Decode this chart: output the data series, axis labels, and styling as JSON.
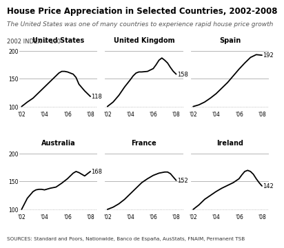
{
  "title": "House Price Appreciation in Selected Countries, 2002-2008",
  "subtitle": "The United States was one of many countries to experience rapid house price growth",
  "index_label": "2002 INDEX = 100",
  "sources": "SOURCES: Standard and Poors, Nationwide, Banco de España, AusStats, FNAIM, Permanent TSB",
  "background_color": "#ffffff",
  "line_color": "#000000",
  "grid_color": "#aaaaaa",
  "title_color": "#000000",
  "subtitle_color": "#555555",
  "x_ticks": [
    2002,
    2004,
    2006,
    2008
  ],
  "x_tick_labels": [
    "'02",
    "'04",
    "'06",
    "'08"
  ],
  "ylim": [
    93,
    212
  ],
  "yticks": [
    100,
    150,
    200
  ],
  "panels": [
    {
      "title": "United States",
      "end_label": "118",
      "data_x": [
        2002,
        2002.5,
        2003,
        2003.5,
        2004,
        2004.5,
        2005,
        2005.25,
        2005.5,
        2005.75,
        2006,
        2006.25,
        2006.5,
        2006.75,
        2007,
        2007.5,
        2008
      ],
      "data_y": [
        100,
        108,
        115,
        125,
        135,
        145,
        155,
        160,
        163,
        163,
        162,
        160,
        158,
        152,
        140,
        128,
        118
      ]
    },
    {
      "title": "United Kingdom",
      "end_label": "158",
      "data_x": [
        2002,
        2002.5,
        2003,
        2003.5,
        2004,
        2004.25,
        2004.5,
        2004.75,
        2005,
        2005.5,
        2006,
        2006.25,
        2006.5,
        2006.75,
        2007,
        2007.25,
        2007.5,
        2007.75,
        2008
      ],
      "data_y": [
        100,
        108,
        120,
        135,
        148,
        155,
        160,
        162,
        162,
        163,
        168,
        175,
        183,
        187,
        183,
        178,
        170,
        163,
        158
      ]
    },
    {
      "title": "Spain",
      "end_label": "192",
      "data_x": [
        2002,
        2002.5,
        2003,
        2003.5,
        2004,
        2004.5,
        2005,
        2005.5,
        2006,
        2006.5,
        2007,
        2007.5,
        2008
      ],
      "data_y": [
        100,
        103,
        108,
        115,
        123,
        133,
        143,
        155,
        167,
        178,
        188,
        193,
        192
      ]
    },
    {
      "title": "Australia",
      "end_label": "168",
      "data_x": [
        2002,
        2002.5,
        2003,
        2003.25,
        2003.5,
        2003.75,
        2004,
        2004.5,
        2005,
        2005.5,
        2006,
        2006.25,
        2006.5,
        2006.75,
        2007,
        2007.25,
        2007.5,
        2008
      ],
      "data_y": [
        100,
        120,
        132,
        135,
        136,
        136,
        135,
        138,
        140,
        147,
        155,
        160,
        165,
        168,
        166,
        163,
        160,
        168
      ]
    },
    {
      "title": "France",
      "end_label": "152",
      "data_x": [
        2002,
        2002.5,
        2003,
        2003.5,
        2004,
        2004.5,
        2005,
        2005.5,
        2006,
        2006.5,
        2007,
        2007.25,
        2007.5,
        2007.75,
        2008
      ],
      "data_y": [
        100,
        104,
        110,
        118,
        128,
        138,
        148,
        155,
        161,
        165,
        167,
        167,
        164,
        158,
        152
      ]
    },
    {
      "title": "Ireland",
      "end_label": "142",
      "data_x": [
        2002,
        2002.5,
        2003,
        2003.5,
        2004,
        2004.5,
        2005,
        2005.5,
        2006,
        2006.25,
        2006.5,
        2006.75,
        2007,
        2007.25,
        2007.5,
        2007.75,
        2008
      ],
      "data_y": [
        100,
        108,
        118,
        125,
        132,
        138,
        143,
        148,
        155,
        162,
        168,
        170,
        168,
        163,
        155,
        148,
        142
      ]
    }
  ]
}
